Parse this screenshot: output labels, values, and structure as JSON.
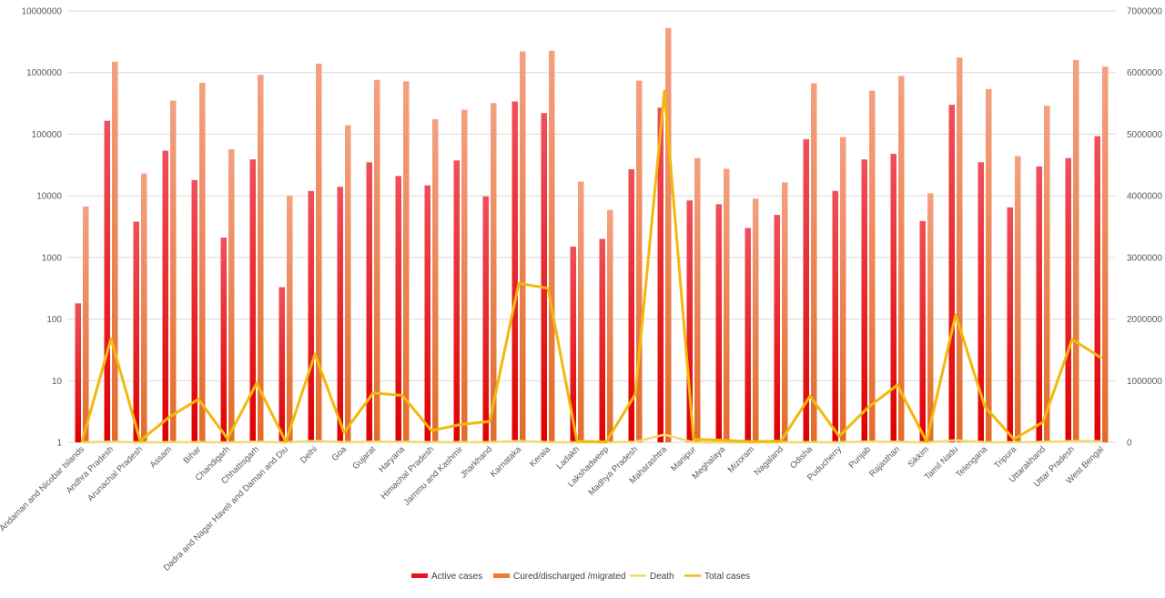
{
  "chart_data": {
    "type": "bar",
    "title": "",
    "xlabel": "",
    "ylabel": "",
    "y_left": {
      "scale": "log",
      "ylim": [
        1,
        10000000
      ],
      "ticks": [
        "1",
        "10",
        "100",
        "1000",
        "10000",
        "100000",
        "1000000",
        "10000000"
      ]
    },
    "y_right": {
      "scale": "linear",
      "ylim": [
        0,
        7000000
      ],
      "ticks": [
        "0",
        "1000000",
        "2000000",
        "3000000",
        "4000000",
        "5000000",
        "6000000",
        "7000000"
      ]
    },
    "grid": true,
    "legend_position": "bottom",
    "categories": [
      "Andaman and Nicobar Islands",
      "Andhra Pradesh",
      "Arunachal Pradesh",
      "Assam",
      "Bihar",
      "Chandigarh",
      "Chhattisgarh",
      "Dadra and Nagar Haveli and Daman and Diu",
      "Delhi",
      "Goa",
      "Gujarat",
      "Haryana",
      "Himachal Pradesh",
      "Jammu and Kashmir",
      "Jharkhand",
      "Karnataka",
      "Kerala",
      "Ladakh",
      "Lakshadweep",
      "Madhya Pradesh",
      "Maharashtra",
      "Manipur",
      "Meghalaya",
      "Mizoram",
      "Nagaland",
      "Odisha",
      "Puducherry",
      "Punjab",
      "Rajasthan",
      "Sikkim",
      "Tamil Nadu",
      "Telengana",
      "Tripura",
      "Uttarakhand",
      "Uttar Pradesh",
      "West Bengal"
    ],
    "series": [
      {
        "name": "Active cases",
        "type": "bar",
        "axis": "left",
        "color": "#e8141b",
        "values": [
          180,
          165000,
          3800,
          54000,
          18000,
          2100,
          39000,
          330,
          12000,
          14000,
          35000,
          21000,
          14800,
          37500,
          9800,
          340000,
          220000,
          1500,
          2000,
          27000,
          270000,
          8400,
          7300,
          3000,
          4900,
          83000,
          12000,
          39000,
          48000,
          3900,
          300000,
          35000,
          6500,
          30000,
          41000,
          93000
        ]
      },
      {
        "name": "Cured/discharged /migrated",
        "type": "bar",
        "axis": "left",
        "color": "#ed7d31",
        "values": [
          6700,
          1500000,
          23000,
          350000,
          680000,
          57000,
          920000,
          10000,
          1400000,
          140000,
          760000,
          720000,
          175000,
          250000,
          320000,
          2200000,
          2250000,
          17000,
          5900,
          740000,
          5300000,
          41000,
          27500,
          9000,
          16500,
          670000,
          90000,
          510000,
          880000,
          11000,
          1750000,
          540000,
          44000,
          290000,
          1600000,
          1250000
        ]
      },
      {
        "name": "Death",
        "type": "line",
        "axis": "right",
        "color": "#f5d76e",
        "values": [
          120,
          11000,
          70,
          3500,
          4400,
          370,
          12000,
          4,
          24000,
          2300,
          9800,
          8500,
          2800,
          4200,
          5000,
          22000,
          5000,
          200,
          2,
          8700,
          125000,
          650,
          500,
          60,
          400,
          4900,
          1700,
          14000,
          8800,
          240,
          32000,
          3700,
          790,
          6900,
          21000,
          17000
        ]
      },
      {
        "name": "Total cases",
        "type": "line",
        "axis": "right",
        "color": "#f2b90c",
        "values": [
          7000,
          1680000,
          27000,
          410000,
          700000,
          60000,
          960000,
          10500,
          1430000,
          160000,
          800000,
          760000,
          190000,
          290000,
          340000,
          2580000,
          2500000,
          18500,
          8000,
          780000,
          5700000,
          50000,
          35000,
          12000,
          21000,
          750000,
          100000,
          570000,
          930000,
          15000,
          2070000,
          580000,
          51000,
          330000,
          1670000,
          1370000
        ]
      }
    ]
  },
  "legend": {
    "items": [
      {
        "label": "Active cases",
        "color": "#e8141b",
        "kind": "rect"
      },
      {
        "label": "Cured/discharged /migrated",
        "color": "#ed7d31",
        "kind": "rect"
      },
      {
        "label": "Death",
        "color": "#f5d76e",
        "kind": "line"
      },
      {
        "label": "Total cases",
        "color": "#f2b90c",
        "kind": "line"
      }
    ]
  }
}
